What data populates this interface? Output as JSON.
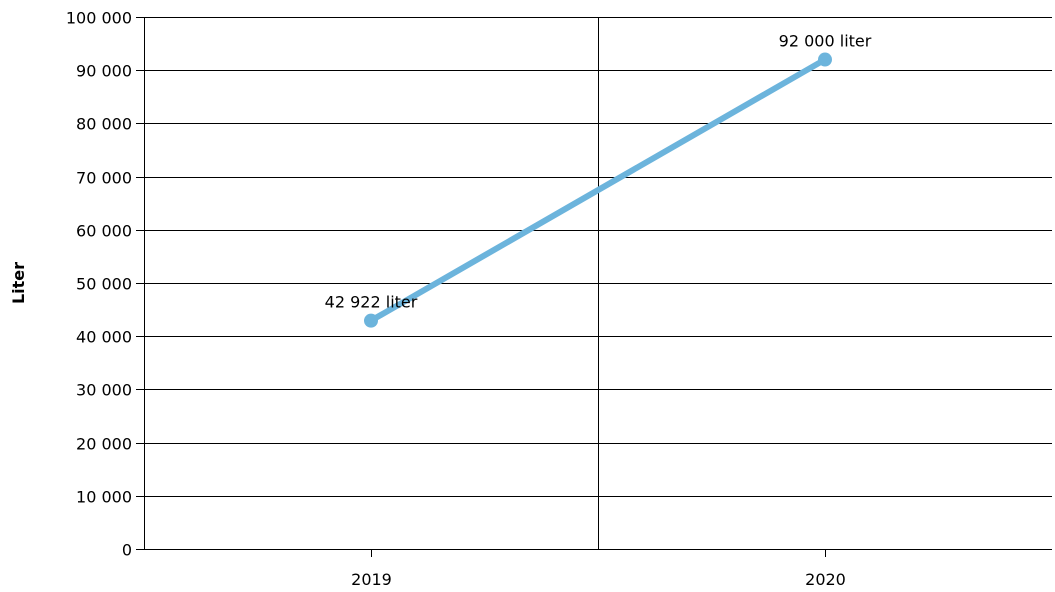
{
  "chart_data": {
    "type": "line",
    "title": "",
    "xlabel": "",
    "ylabel": "Liter",
    "categories": [
      "2019",
      "2020"
    ],
    "series": [
      {
        "values": [
          42922,
          92000
        ],
        "data_labels": [
          "42 922 liter",
          "92 000 liter"
        ],
        "color": "#6cb4dc"
      }
    ],
    "ylim": [
      0,
      100000
    ],
    "yticks": [
      0,
      10000,
      20000,
      30000,
      40000,
      50000,
      60000,
      70000,
      80000,
      90000,
      100000
    ],
    "ytick_labels": [
      "0",
      "10 000",
      "20 000",
      "30 000",
      "40 000",
      "50 000",
      "60 000",
      "70 000",
      "80 000",
      "90 000",
      "100 000"
    ],
    "grid": true,
    "legend": "none"
  },
  "colors": {
    "line": "#6cb4dc",
    "grid": "#000000",
    "background": "#ffffff"
  }
}
